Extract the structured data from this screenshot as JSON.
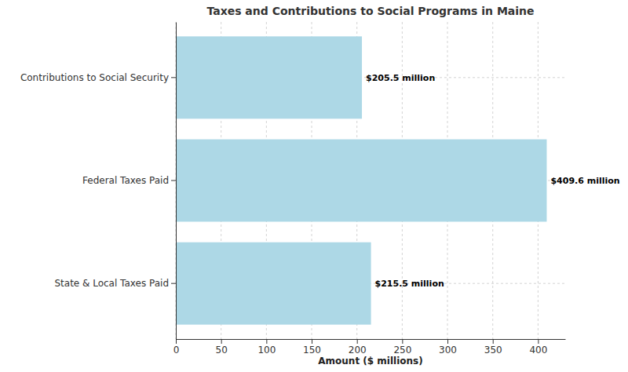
{
  "chart_data": {
    "type": "bar",
    "orientation": "horizontal",
    "title": "Taxes and Contributions to Social Programs in Maine",
    "x_label": "Amount ($ millions)",
    "categories": [
      "Contributions to Social Security",
      "Federal Taxes Paid",
      "State & Local Taxes Paid"
    ],
    "values": [
      205.5,
      409.6,
      215.5
    ],
    "value_labels": [
      "$205.5 million",
      "$409.6 million",
      "$215.5 million"
    ],
    "data_labels": true,
    "color": "#add8e6",
    "xlim": [
      0,
      430
    ],
    "xticks": [
      0,
      50,
      100,
      150,
      200,
      250,
      300,
      350,
      400
    ],
    "grid": true
  }
}
